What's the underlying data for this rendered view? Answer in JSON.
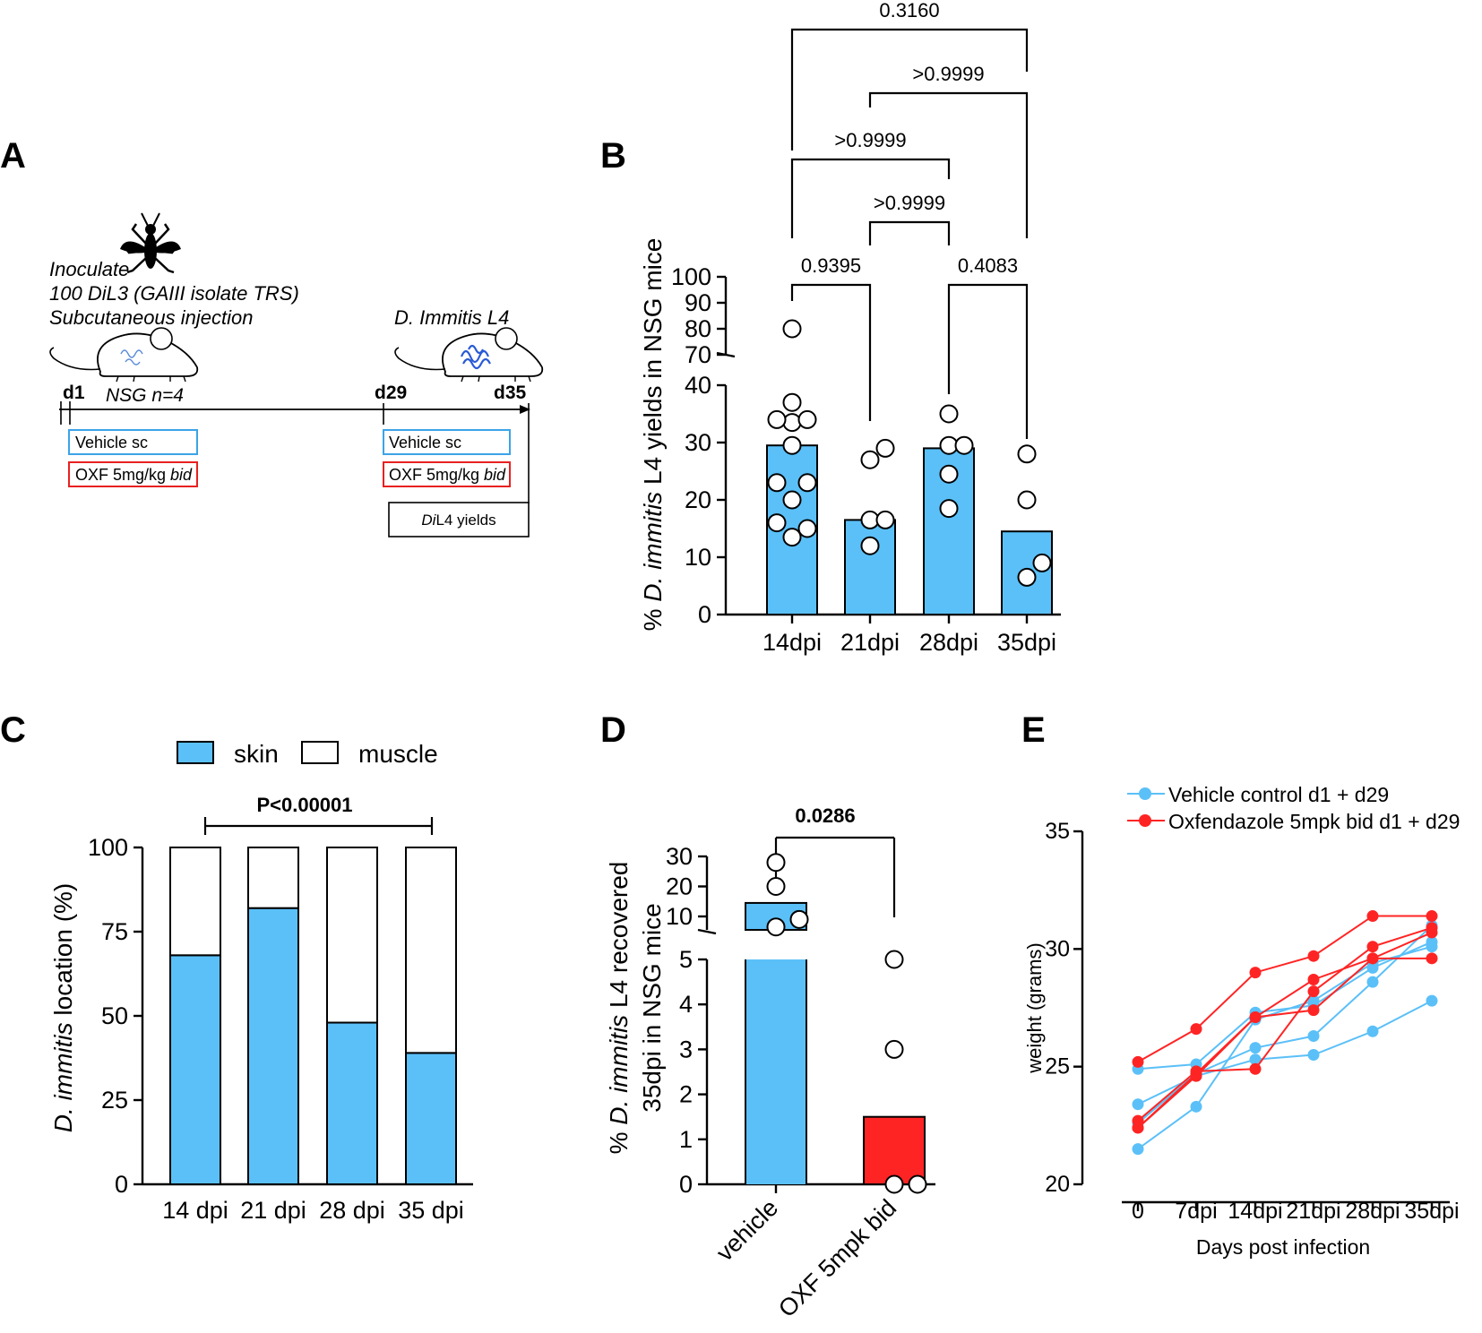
{
  "colors": {
    "blue": "#5bc0f8",
    "red": "#ff2424",
    "box_blue": "#3ba3e8",
    "box_red": "#e82020",
    "mouse_worm": "#2a5bd6"
  },
  "panel_a": {
    "label": "A",
    "inoculate": "Inoculate",
    "inoc_line2": "100 DiL3 (GAIII isolate TRS)",
    "inoc_line3": "Subcutaneous injection",
    "species_label": "D. Immitis L4",
    "day1": "d1",
    "group": "NSG n=4",
    "day29": "d29",
    "day35": "d35",
    "vehicle1": "Vehicle sc",
    "oxf1_main": "OXF 5mg/kg ",
    "oxf1_em": "bid",
    "vehicle2": "Vehicle sc",
    "oxf2_main": "OXF 5mg/kg ",
    "oxf2_em": "bid",
    "yields_em": "Di",
    "yields_rest": "L4 yields"
  },
  "panel_b": {
    "label": "B",
    "ylabel_pre": "% ",
    "ylabel_em": "D. immitis",
    "ylabel_post": " L4 yields in NSG mice",
    "yticks_low": [
      "0",
      "10",
      "20",
      "30",
      "40"
    ],
    "yticks_high": [
      "70",
      "80",
      "90",
      "100"
    ],
    "sig": [
      "0.9395",
      "0.4083",
      ">0.9999",
      ">0.9999",
      ">0.9999",
      "0.3160"
    ]
  },
  "panel_c": {
    "label": "C",
    "legend_skin": "skin",
    "legend_muscle": "muscle",
    "pvalue": "P<0.00001",
    "ylabel_em": "D. immitis",
    "ylabel_post": "  location  (%)",
    "yticks": [
      "0",
      "25",
      "50",
      "75",
      "100"
    ]
  },
  "panel_d": {
    "label": "D",
    "ylabel1_pre": "% ",
    "ylabel1_em": "D. immitis",
    "ylabel1_post": " L4 recovered",
    "ylabel2": "35dpi in NSG mice",
    "sig": "0.0286",
    "yticks_low": [
      "0",
      "1",
      "2",
      "3",
      "4",
      "5"
    ],
    "yticks_high": [
      "10",
      "20",
      "30"
    ]
  },
  "panel_e": {
    "label": "E",
    "legend_vehicle": "Vehicle control  d1 + d29",
    "legend_oxf": "Oxfendazole 5mpk bid d1 + d29",
    "ylabel": "weight (grams)",
    "xlabel": "Days post infection",
    "yticks": [
      "20",
      "25",
      "30",
      "35"
    ]
  },
  "chart_data": [
    {
      "type": "bar",
      "panel": "B",
      "categories": [
        "14dpi",
        "21dpi",
        "28dpi",
        "35dpi"
      ],
      "values": [
        29.5,
        16.5,
        29,
        14.5
      ],
      "points": [
        [
          13.5,
          15,
          16,
          20,
          23,
          23,
          29.5,
          33.5,
          34,
          34,
          37,
          80
        ],
        [
          12,
          16.5,
          16.5,
          27,
          29
        ],
        [
          18.5,
          24.5,
          29.5,
          29.5,
          35
        ],
        [
          6.5,
          9,
          20,
          28
        ]
      ],
      "ylabel": "% D. immitis L4 yields in NSG mice",
      "ylim": [
        0,
        100
      ],
      "axis_break": [
        40,
        70
      ]
    },
    {
      "type": "bar",
      "panel": "C",
      "stacked": true,
      "categories": [
        "14 dpi",
        "21 dpi",
        "28 dpi",
        "35 dpi"
      ],
      "series": [
        {
          "name": "skin",
          "values": [
            68,
            82,
            48,
            39
          ]
        },
        {
          "name": "muscle",
          "values": [
            32,
            18,
            52,
            61
          ]
        }
      ],
      "ylabel": "D. immitis  location  (%)",
      "ylim": [
        0,
        100
      ],
      "legend": "top"
    },
    {
      "type": "bar",
      "panel": "D",
      "categories": [
        "vehicle",
        "OXF 5mpk bid"
      ],
      "values": [
        14.5,
        1.5
      ],
      "points": [
        [
          6.5,
          9,
          20,
          28
        ],
        [
          0,
          0,
          3,
          5
        ]
      ],
      "ylabel": "% D. immitis L4 recovered 35dpi in NSG mice",
      "ylim": [
        0,
        30
      ],
      "axis_break": [
        5,
        6
      ]
    },
    {
      "type": "line",
      "panel": "E",
      "x": [
        "0",
        "7dpi",
        "14dpi",
        "21dpi",
        "28dpi",
        "35dpi"
      ],
      "series": [
        {
          "name": "Vehicle control  d1 + d29",
          "values": [
            24.9,
            25.1,
            27.3,
            27.6,
            29.2,
            30.3
          ]
        },
        {
          "name": "Vehicle control  d1 + d29",
          "values": [
            23.4,
            24.6,
            25.3,
            25.5,
            26.5,
            27.8
          ]
        },
        {
          "name": "Vehicle control  d1 + d29",
          "values": [
            22.6,
            24.7,
            25.8,
            26.3,
            28.6,
            31.0
          ]
        },
        {
          "name": "Vehicle control  d1 + d29",
          "values": [
            21.5,
            23.3,
            27.0,
            27.8,
            29.4,
            30.1
          ]
        },
        {
          "name": "Oxfendazole 5mpk bid d1 + d29",
          "values": [
            25.2,
            26.6,
            29.0,
            29.7,
            31.4,
            31.4
          ]
        },
        {
          "name": "Oxfendazole 5mpk bid d1 + d29",
          "values": [
            22.7,
            24.8,
            24.9,
            28.2,
            30.1,
            30.9
          ]
        },
        {
          "name": "Oxfendazole 5mpk bid d1 + d29",
          "values": [
            22.4,
            24.7,
            27.1,
            28.7,
            29.6,
            29.6
          ]
        },
        {
          "name": "Oxfendazole 5mpk bid d1 + d29",
          "values": [
            22.4,
            24.6,
            27.1,
            27.4,
            29.6,
            30.7
          ]
        }
      ],
      "xlabel": "Days post infection",
      "ylabel": "weight (grams)",
      "ylim": [
        20,
        35
      ],
      "legend": "top"
    }
  ]
}
